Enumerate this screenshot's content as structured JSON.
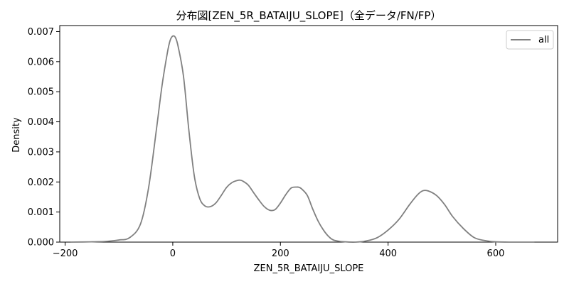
{
  "chart_data": {
    "type": "line",
    "title": "分布図[ZEN_5R_BATAIJU_SLOPE]（全データ/FN/FP）",
    "xlabel": "ZEN_5R_BATAIJU_SLOPE",
    "ylabel": "Density",
    "xlim": [
      -210,
      715
    ],
    "ylim": [
      0,
      0.0072
    ],
    "xticks": [
      -200,
      0,
      200,
      400,
      600
    ],
    "xtick_labels": [
      "−200",
      "0",
      "200",
      "400",
      "600"
    ],
    "yticks": [
      0,
      0.001,
      0.002,
      0.003,
      0.004,
      0.005,
      0.006,
      0.007
    ],
    "ytick_labels": [
      "0.000",
      "0.001",
      "0.002",
      "0.003",
      "0.004",
      "0.005",
      "0.006",
      "0.007"
    ],
    "grid": false,
    "legend_position": "top-right",
    "series": [
      {
        "name": "all",
        "color": "#808080",
        "x": [
          -190,
          -150,
          -120,
          -100,
          -80,
          -60,
          -45,
          -30,
          -20,
          -10,
          -5,
          0,
          5,
          10,
          20,
          30,
          40,
          50,
          60,
          70,
          80,
          90,
          100,
          110,
          120,
          125,
          130,
          140,
          150,
          160,
          170,
          180,
          190,
          200,
          210,
          220,
          230,
          235,
          240,
          250,
          260,
          270,
          280,
          290,
          300,
          320,
          340,
          360,
          380,
          400,
          420,
          440,
          455,
          465,
          475,
          490,
          505,
          520,
          540,
          560,
          580,
          600,
          630,
          672
        ],
        "y": [
          0.0,
          1e-05,
          3e-05,
          7e-05,
          0.00015,
          0.0006,
          0.0018,
          0.0038,
          0.0052,
          0.0063,
          0.0067,
          0.00685,
          0.0068,
          0.0065,
          0.0055,
          0.0037,
          0.0022,
          0.00145,
          0.0012,
          0.00118,
          0.0013,
          0.00155,
          0.00182,
          0.00198,
          0.00205,
          0.00206,
          0.00203,
          0.0019,
          0.00165,
          0.0014,
          0.00118,
          0.00106,
          0.00108,
          0.0013,
          0.00158,
          0.0018,
          0.00183,
          0.00182,
          0.00176,
          0.00155,
          0.0011,
          0.0007,
          0.0004,
          0.00018,
          6e-05,
          1e-05,
          0.0,
          4e-05,
          0.00015,
          0.0004,
          0.00075,
          0.00125,
          0.00158,
          0.00171,
          0.0017,
          0.00155,
          0.00125,
          0.00085,
          0.00045,
          0.00015,
          5e-05,
          1e-05,
          0.0,
          0.0
        ]
      }
    ]
  }
}
